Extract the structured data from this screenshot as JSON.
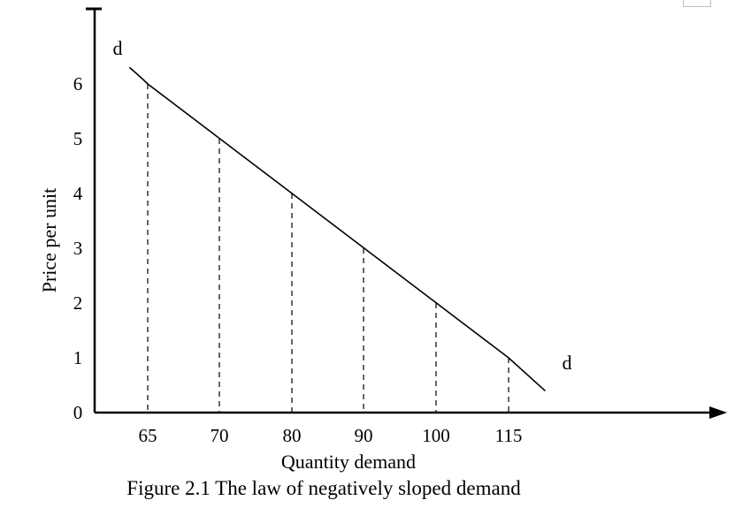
{
  "chart_data": {
    "type": "line",
    "title": "Figure 2.1 The law of negatively sloped demand",
    "xlabel": "Quantity demand",
    "ylabel": "Price per unit",
    "x_tick_labels": [
      "65",
      "70",
      "80",
      "90",
      "100",
      "115"
    ],
    "y_tick_labels": [
      "0",
      "1",
      "2",
      "3",
      "4",
      "5",
      "6"
    ],
    "curve_label": "d",
    "series": [
      {
        "points": [
          {
            "x": "65",
            "y": 6
          },
          {
            "x": "70",
            "y": 5
          },
          {
            "x": "80",
            "y": 4
          },
          {
            "x": "90",
            "y": 3
          },
          {
            "x": "100",
            "y": 2
          },
          {
            "x": "115",
            "y": 1
          }
        ]
      }
    ],
    "guides": "dashed vertical lines from each point to the x-axis",
    "grid": false,
    "colors": {
      "ink": "#000000"
    }
  }
}
